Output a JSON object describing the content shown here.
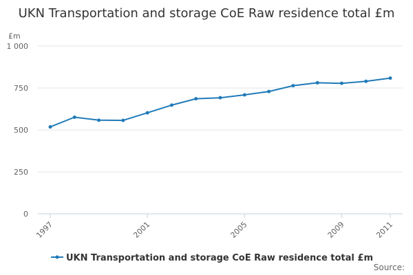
{
  "chart_data": {
    "type": "line",
    "title": "UKN Transportation and storage CoE Raw residence total £m",
    "ylabel": "£m",
    "xlabel": "",
    "x": [
      1997,
      1998,
      1999,
      2000,
      2001,
      2002,
      2003,
      2004,
      2005,
      2006,
      2007,
      2008,
      2009,
      2010,
      2011
    ],
    "x_tick_labels": [
      "1997",
      "2001",
      "2005",
      "2009",
      "2011"
    ],
    "x_tick_values": [
      1997,
      2001,
      2005,
      2009,
      2011
    ],
    "y_tick_labels": [
      "0",
      "250",
      "500",
      "750",
      "1 000"
    ],
    "y_tick_values": [
      0,
      250,
      500,
      750,
      1000
    ],
    "ylim": [
      0,
      1000
    ],
    "xlim": [
      1997,
      2011
    ],
    "series": [
      {
        "name": "UKN Transportation and storage CoE Raw residence total £m",
        "color": "#1f7ab8",
        "values": [
          518,
          576,
          558,
          557,
          602,
          648,
          686,
          692,
          709,
          729,
          764,
          781,
          778,
          790,
          809
        ]
      }
    ],
    "grid": true,
    "legend_position": "bottom"
  },
  "source_label": "Source:"
}
